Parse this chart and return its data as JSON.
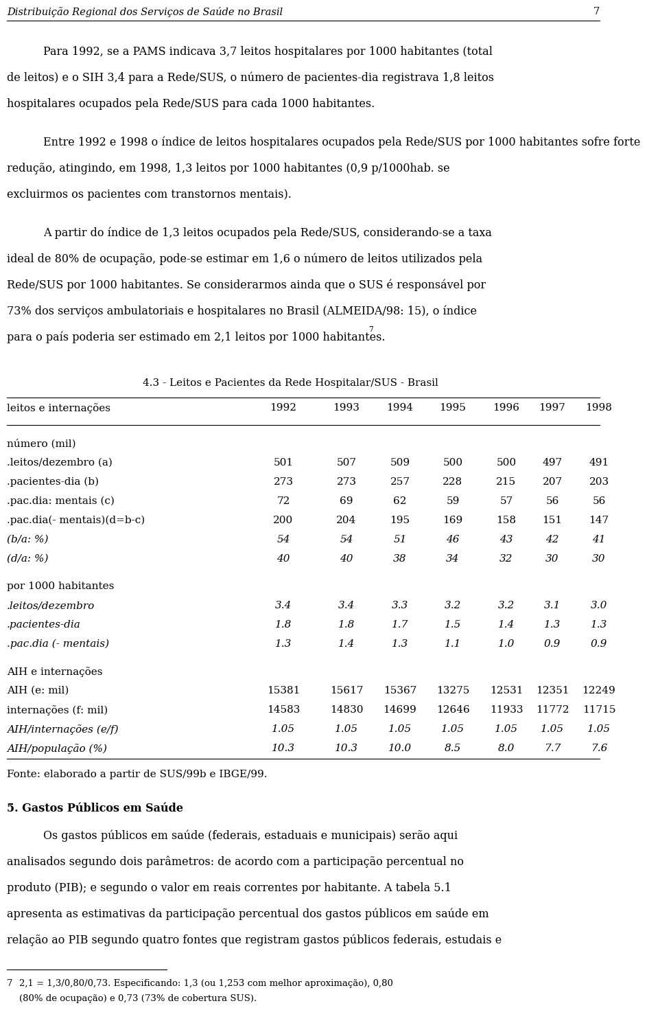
{
  "header_title": "Distribuição Regional dos Serviços de Saúde no Brasil",
  "header_page": "7",
  "para1_lines": [
    "Para 1992, se a PAMS indicava 3,7 leitos hospitalares por 1000 habitantes (total",
    "de leitos) e o SIH 3,4 para a Rede/SUS, o número de pacientes-dia registrava 1,8 leitos",
    "hospitalares ocupados pela Rede/SUS para cada 1000 habitantes."
  ],
  "para2_lines": [
    "Entre 1992 e 1998 o índice de leitos hospitalares ocupados pela Rede/SUS por 1000 habitantes sofre forte",
    "redução, atingindo, em 1998, 1,3 leitos por 1000 habitantes (0,9 p/1000hab. se",
    "excluirmos os pacientes com transtornos mentais)."
  ],
  "para3_lines": [
    "A partir do índice de 1,3 leitos ocupados pela Rede/SUS, considerando-se a taxa",
    "ideal de 80% de ocupação, pode-se estimar em 1,6 o número de leitos utilizados pela",
    "Rede/SUS por 1000 habitantes. Se considerarmos ainda que o SUS é responsável por",
    "73% dos serviços ambulatoriais e hospitalares no Brasil (ALMEIDA/98: 15), o índice",
    "para o país poderia ser estimado em 2,1 leitos por 1000 habitantes."
  ],
  "para3_sup": "7",
  "table_title": "4.3 - Leitos e Pacientes da Rede Hospitalar/SUS - Brasil",
  "table_col0_header": "leitos e internações",
  "table_years": [
    "1992",
    "1993",
    "1994",
    "1995",
    "1996",
    "1997",
    "1998"
  ],
  "section_numero": "número (mil)",
  "rows_normal": [
    [
      ".leitos/dezembro (a)",
      "501",
      "507",
      "509",
      "500",
      "500",
      "497",
      "491"
    ],
    [
      ".pacientes-dia (b)",
      "273",
      "273",
      "257",
      "228",
      "215",
      "207",
      "203"
    ],
    [
      ".pac.dia: mentais (c)",
      "72",
      "69",
      "62",
      "59",
      "57",
      "56",
      "56"
    ],
    [
      ".pac.dia(- mentais)(d=b-c)",
      "200",
      "204",
      "195",
      "169",
      "158",
      "151",
      "147"
    ]
  ],
  "rows_italic1": [
    [
      "(b/a: %)",
      "54",
      "54",
      "51",
      "46",
      "43",
      "42",
      "41"
    ],
    [
      "(d/a: %)",
      "40",
      "40",
      "38",
      "34",
      "32",
      "30",
      "30"
    ]
  ],
  "section_por1000": "por 1000 habitantes",
  "rows_italic2": [
    [
      ".leitos/dezembro",
      "3.4",
      "3.4",
      "3.3",
      "3.2",
      "3.2",
      "3.1",
      "3.0"
    ],
    [
      ".pacientes-dia",
      "1.8",
      "1.8",
      "1.7",
      "1.5",
      "1.4",
      "1.3",
      "1.3"
    ],
    [
      ".pac.dia (- mentais)",
      "1.3",
      "1.4",
      "1.3",
      "1.1",
      "1.0",
      "0.9",
      "0.9"
    ]
  ],
  "section_aih": "AIH e internações",
  "rows_aih_normal": [
    [
      "AIH (e: mil)",
      "15381",
      "15617",
      "15367",
      "13275",
      "12531",
      "12351",
      "12249"
    ],
    [
      "internações (f: mil)",
      "14583",
      "14830",
      "14699",
      "12646",
      "11933",
      "11772",
      "11715"
    ]
  ],
  "rows_aih_italic": [
    [
      "AIH/internações (e/f)",
      "1.05",
      "1.05",
      "1.05",
      "1.05",
      "1.05",
      "1.05",
      "1.05"
    ],
    [
      "AIH/população (%)",
      "10.3",
      "10.3",
      "10.0",
      "8.5",
      "8.0",
      "7.7",
      "7.6"
    ]
  ],
  "fonte": "Fonte: elaborado a partir de SUS/99b e IBGE/99.",
  "section5_title": "5. Gastos Públicos em Saúde",
  "section5_lines": [
    "Os gastos públicos em saúde (federais, estaduais e municipais) serão aqui",
    "analisados segundo dois parâmetros: de acordo com a participação percentual no",
    "produto (PIB); e segundo o valor em reais correntes por habitante. A tabela 5.1",
    "apresenta as estimativas da participação percentual dos gastos públicos em saúde em",
    "relação ao PIB segundo quatro fontes que registram gastos públicos federais, estudais e"
  ],
  "footnote_num": "7",
  "footnote_line1": "2,1 = 1,3/0,80/0,73. Especificando: 1,3 (ou 1,253 com melhor aproximação), 0,80",
  "footnote_line2": "(80% de ocupação) e 0,73 (73% de cobertura SUS).",
  "bg_color": "#ffffff",
  "text_color": "#000000"
}
